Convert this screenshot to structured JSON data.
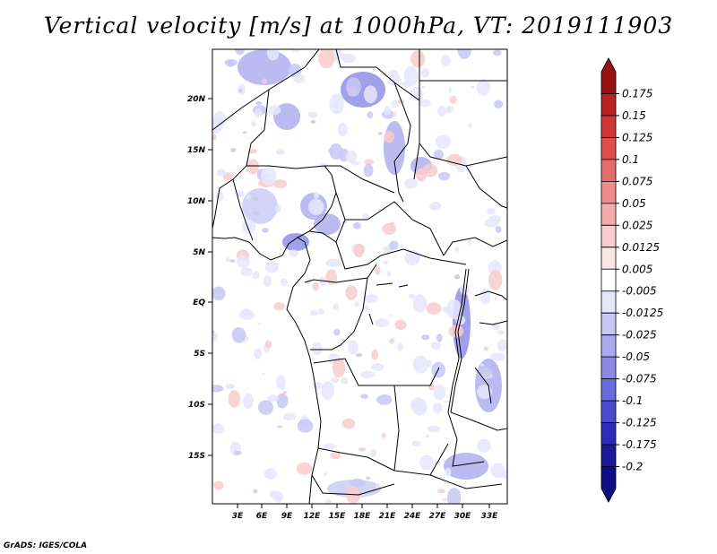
{
  "title": "Vertical velocity [m/s] at 1000hPa, VT: 2019111903",
  "credit": "GrADS: IGES/COLA",
  "map": {
    "lat_labels": [
      "20N",
      "15N",
      "10N",
      "5N",
      "EQ",
      "5S",
      "10S",
      "15S"
    ],
    "lon_labels": [
      "3E",
      "6E",
      "9E",
      "12E",
      "15E",
      "18E",
      "21E",
      "24E",
      "27E",
      "30E",
      "33E"
    ]
  },
  "legend": {
    "labels": [
      "0.175",
      "0.15",
      "0.125",
      "0.1",
      "0.075",
      "0.05",
      "0.025",
      "0.0125",
      "0.005",
      "-0.005",
      "-0.0125",
      "-0.025",
      "-0.05",
      "-0.075",
      "-0.1",
      "-0.125",
      "-0.175",
      "-0.2"
    ],
    "colors": [
      "#9b1111",
      "#b82222",
      "#cf3535",
      "#df4d4d",
      "#e66b6b",
      "#ee8b8b",
      "#f4abab",
      "#f8cccc",
      "#fbe6e6",
      "#ffffff",
      "#e6e6fb",
      "#c8c8f4",
      "#aaaaee",
      "#8a8ae6",
      "#6a6adf",
      "#4b4bcf",
      "#2c2cb8",
      "#1a1a9b",
      "#0e0e82"
    ]
  }
}
